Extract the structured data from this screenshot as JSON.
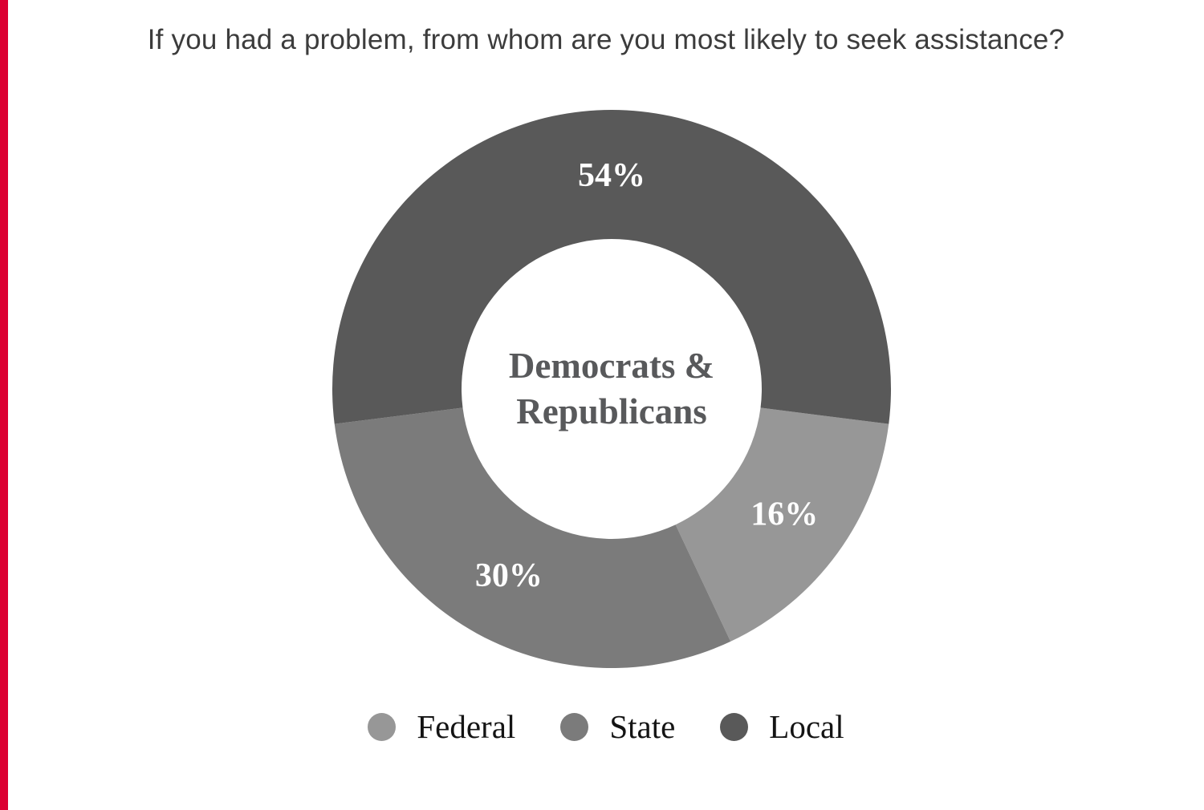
{
  "page": {
    "background_color": "#ffffff",
    "accent_bar_color": "#dc0032"
  },
  "chart_data": {
    "type": "pie",
    "subtype": "donut",
    "title": "If you had a problem, from whom are you most likely to seek assistance?",
    "center_label": {
      "line1": "Democrats &",
      "line2": "Republicans"
    },
    "series": [
      {
        "label": "Federal",
        "value": 16,
        "display": "16%",
        "color": "#979797"
      },
      {
        "label": "State",
        "value": 30,
        "display": "30%",
        "color": "#7b7b7b"
      },
      {
        "label": "Local",
        "value": 54,
        "display": "54%",
        "color": "#595959"
      }
    ],
    "legend": [
      "Federal",
      "State",
      "Local"
    ],
    "legend_position": "bottom",
    "value_label_color": "#ffffff",
    "title_color": "#3c3c3c",
    "center_label_color": "#58595b"
  }
}
